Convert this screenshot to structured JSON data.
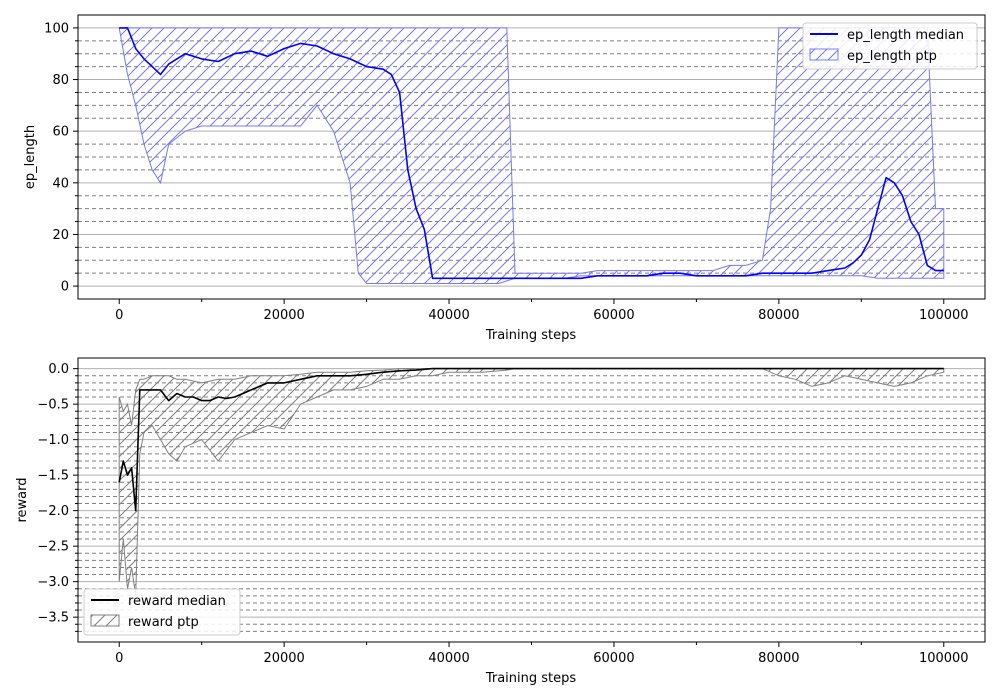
{
  "chart_data": [
    {
      "type": "line",
      "xlabel": "Training steps",
      "ylabel": "ep_length",
      "xlim": [
        -5000,
        105000
      ],
      "ylim": [
        -5,
        105
      ],
      "xticks": [
        0,
        20000,
        40000,
        60000,
        80000,
        100000
      ],
      "xtick_labels": [
        "0",
        "20000",
        "40000",
        "60000",
        "80000",
        "100000"
      ],
      "yticks": [
        0,
        20,
        40,
        60,
        80,
        100
      ],
      "ytick_labels": [
        "0",
        "20",
        "40",
        "60",
        "80",
        "100"
      ],
      "minor_gridlines_y": [
        5,
        10,
        15,
        25,
        30,
        35,
        45,
        50,
        55,
        65,
        70,
        75,
        85,
        90,
        95
      ],
      "major_gridlines_y": [
        0,
        20,
        40,
        60,
        80,
        100
      ],
      "legend_position": "upper right",
      "colors": {
        "median": "#0000ff",
        "ptp": "#7878f0"
      },
      "series": [
        {
          "name": "ep_length median",
          "style": "line",
          "x": [
            0,
            1000,
            2000,
            3000,
            4000,
            5000,
            6000,
            8000,
            10000,
            12000,
            14000,
            16000,
            18000,
            20000,
            22000,
            24000,
            26000,
            28000,
            30000,
            32000,
            33000,
            34000,
            35000,
            36000,
            37000,
            38000,
            40000,
            42000,
            44000,
            46000,
            48000,
            50000,
            52000,
            54000,
            56000,
            58000,
            60000,
            62000,
            64000,
            66000,
            68000,
            70000,
            72000,
            74000,
            76000,
            78000,
            80000,
            82000,
            84000,
            86000,
            88000,
            89000,
            90000,
            91000,
            92000,
            93000,
            94000,
            95000,
            96000,
            97000,
            98000,
            99000,
            100000
          ],
          "values": [
            100,
            100,
            92,
            88,
            85,
            82,
            86,
            90,
            88,
            87,
            90,
            91,
            89,
            92,
            94,
            93,
            90,
            88,
            85,
            84,
            82,
            75,
            45,
            30,
            22,
            3,
            3,
            3,
            3,
            3,
            3,
            3,
            3,
            3,
            3,
            4,
            4,
            4,
            4,
            5,
            5,
            4,
            4,
            4,
            4,
            5,
            5,
            5,
            5,
            6,
            7,
            9,
            12,
            18,
            30,
            42,
            40,
            35,
            25,
            20,
            8,
            6,
            6
          ]
        },
        {
          "name": "ep_length ptp",
          "style": "hatched-band",
          "x": [
            0,
            1000,
            2000,
            3000,
            4000,
            5000,
            6000,
            8000,
            10000,
            12000,
            14000,
            16000,
            18000,
            20000,
            22000,
            24000,
            26000,
            28000,
            29000,
            30000,
            32000,
            34000,
            36000,
            38000,
            40000,
            42000,
            44000,
            46000,
            47000,
            48000,
            50000,
            52000,
            54000,
            56000,
            58000,
            60000,
            62000,
            64000,
            66000,
            68000,
            70000,
            72000,
            74000,
            76000,
            78000,
            79000,
            80000,
            82000,
            84000,
            86000,
            88000,
            90000,
            92000,
            94000,
            96000,
            98000,
            99000,
            100000
          ],
          "lower": [
            100,
            82,
            70,
            55,
            45,
            40,
            55,
            60,
            62,
            62,
            62,
            62,
            62,
            62,
            62,
            70,
            60,
            40,
            5,
            1,
            1,
            1,
            1,
            1,
            1,
            1,
            1,
            1,
            2,
            3,
            3,
            3,
            3,
            4,
            4,
            4,
            4,
            4,
            4,
            4,
            4,
            4,
            4,
            4,
            4,
            4,
            4,
            4,
            4,
            4,
            4,
            4,
            3,
            3,
            3,
            3,
            3,
            3
          ],
          "upper": [
            100,
            100,
            100,
            100,
            100,
            100,
            100,
            100,
            100,
            100,
            100,
            100,
            100,
            100,
            100,
            100,
            100,
            100,
            100,
            100,
            100,
            100,
            100,
            100,
            100,
            100,
            100,
            100,
            100,
            5,
            5,
            5,
            5,
            5,
            6,
            6,
            6,
            6,
            6,
            6,
            6,
            6,
            8,
            8,
            10,
            30,
            100,
            100,
            100,
            100,
            100,
            100,
            100,
            100,
            100,
            100,
            30,
            30
          ]
        }
      ]
    },
    {
      "type": "line",
      "xlabel": "Training steps",
      "ylabel": "reward",
      "xlim": [
        -5000,
        105000
      ],
      "ylim": [
        -3.85,
        0.15
      ],
      "xticks": [
        0,
        20000,
        40000,
        60000,
        80000,
        100000
      ],
      "xtick_labels": [
        "0",
        "20000",
        "40000",
        "60000",
        "80000",
        "100000"
      ],
      "yticks": [
        0.0,
        -0.5,
        -1.0,
        -1.5,
        -2.0,
        -2.5,
        -3.0,
        -3.5
      ],
      "ytick_labels": [
        "0.0",
        "−0.5",
        "−1.0",
        "−1.5",
        "−2.0",
        "−2.5",
        "−3.0",
        "−3.5"
      ],
      "minor_gridlines_y": [
        -0.1,
        -0.2,
        -0.3,
        -0.4,
        -0.6,
        -0.7,
        -0.8,
        -0.9,
        -1.1,
        -1.2,
        -1.3,
        -1.4,
        -1.6,
        -1.7,
        -1.8,
        -1.9,
        -2.1,
        -2.2,
        -2.3,
        -2.4,
        -2.6,
        -2.7,
        -2.8,
        -2.9,
        -3.1,
        -3.2,
        -3.3,
        -3.4,
        -3.6,
        -3.7
      ],
      "major_gridlines_y": [
        0.0,
        -0.5,
        -1.0,
        -1.5,
        -2.0,
        -2.5,
        -3.0,
        -3.5
      ],
      "legend_position": "lower left",
      "colors": {
        "median": "#000000",
        "ptp": "#808080"
      },
      "series": [
        {
          "name": "reward median",
          "style": "line",
          "x": [
            0,
            500,
            1000,
            1500,
            2000,
            2500,
            3000,
            4000,
            5000,
            6000,
            7000,
            8000,
            9000,
            10000,
            11000,
            12000,
            13000,
            14000,
            15000,
            16000,
            17000,
            18000,
            19000,
            20000,
            22000,
            24000,
            26000,
            28000,
            30000,
            32000,
            34000,
            36000,
            38000,
            40000,
            50000,
            60000,
            70000,
            80000,
            90000,
            100000
          ],
          "values": [
            -1.6,
            -1.3,
            -1.5,
            -1.4,
            -2.0,
            -0.3,
            -0.3,
            -0.3,
            -0.3,
            -0.45,
            -0.35,
            -0.4,
            -0.4,
            -0.45,
            -0.45,
            -0.4,
            -0.42,
            -0.4,
            -0.35,
            -0.3,
            -0.25,
            -0.2,
            -0.2,
            -0.2,
            -0.15,
            -0.1,
            -0.1,
            -0.1,
            -0.08,
            -0.05,
            -0.03,
            -0.02,
            0.0,
            0.0,
            0.0,
            0.0,
            0.0,
            0.0,
            0.0,
            0.0
          ]
        },
        {
          "name": "reward ptp",
          "style": "hatched-band",
          "x": [
            0,
            500,
            1000,
            1500,
            2000,
            2500,
            3000,
            4000,
            5000,
            6000,
            7000,
            8000,
            10000,
            12000,
            14000,
            16000,
            18000,
            20000,
            22000,
            24000,
            26000,
            28000,
            30000,
            32000,
            34000,
            36000,
            38000,
            40000,
            44000,
            47000,
            48000,
            60000,
            78000,
            80000,
            82000,
            84000,
            86000,
            88000,
            90000,
            92000,
            94000,
            96000,
            98000,
            100000
          ],
          "lower": [
            -3.0,
            -2.4,
            -3.1,
            -2.8,
            -3.2,
            -1.2,
            -0.9,
            -0.8,
            -1.0,
            -1.2,
            -1.3,
            -1.1,
            -1.0,
            -1.3,
            -1.0,
            -0.9,
            -0.8,
            -0.85,
            -0.5,
            -0.4,
            -0.3,
            -0.3,
            -0.25,
            -0.15,
            -0.15,
            -0.1,
            -0.1,
            -0.05,
            -0.05,
            -0.02,
            0.0,
            0.0,
            0.0,
            -0.1,
            -0.15,
            -0.25,
            -0.2,
            -0.1,
            -0.15,
            -0.2,
            -0.25,
            -0.2,
            -0.1,
            -0.05
          ],
          "upper": [
            -0.4,
            -0.6,
            -0.5,
            -0.8,
            -0.3,
            -0.15,
            -0.15,
            -0.1,
            -0.1,
            -0.1,
            -0.15,
            -0.15,
            -0.2,
            -0.15,
            -0.15,
            -0.1,
            -0.1,
            -0.1,
            -0.08,
            -0.05,
            -0.05,
            -0.05,
            -0.03,
            -0.02,
            0.0,
            0.0,
            0.0,
            0.0,
            0.0,
            0.0,
            0.0,
            0.0,
            0.0,
            0.0,
            0.0,
            0.0,
            0.0,
            0.0,
            0.0,
            0.0,
            0.0,
            0.0,
            0.0,
            0.0
          ]
        }
      ]
    }
  ]
}
